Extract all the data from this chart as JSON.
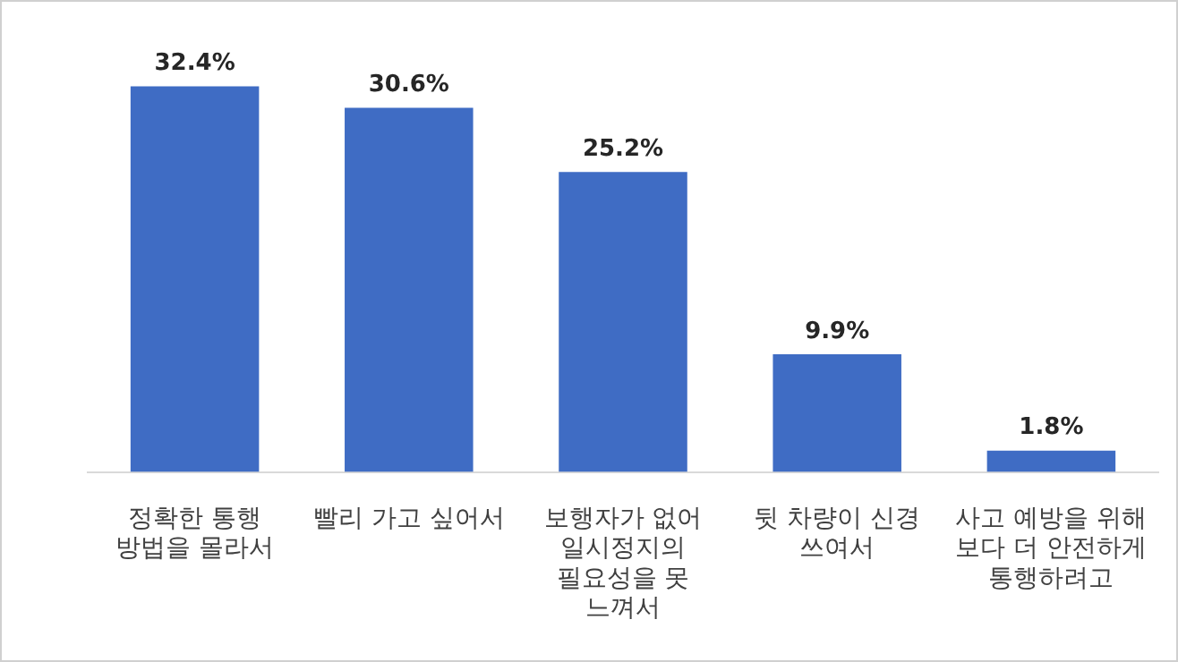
{
  "chart_data": {
    "type": "bar",
    "categories": [
      "정확한 통행 방법을 몰라서",
      "빨리 가고 싶어서",
      "보행자가 없어 일시정지의 필요성을 못 느껴서",
      "뒷 차량이 신경 쓰여서",
      "사고 예방을 위해 보다 더 안전하게 통행하려고"
    ],
    "values": [
      32.4,
      30.6,
      25.2,
      9.9,
      1.8
    ],
    "value_labels": [
      "32.4%",
      "30.6%",
      "25.2%",
      "9.9%",
      "1.8%"
    ],
    "color": "#3f6cc4",
    "relative": false,
    "grid": false,
    "legend": false
  }
}
